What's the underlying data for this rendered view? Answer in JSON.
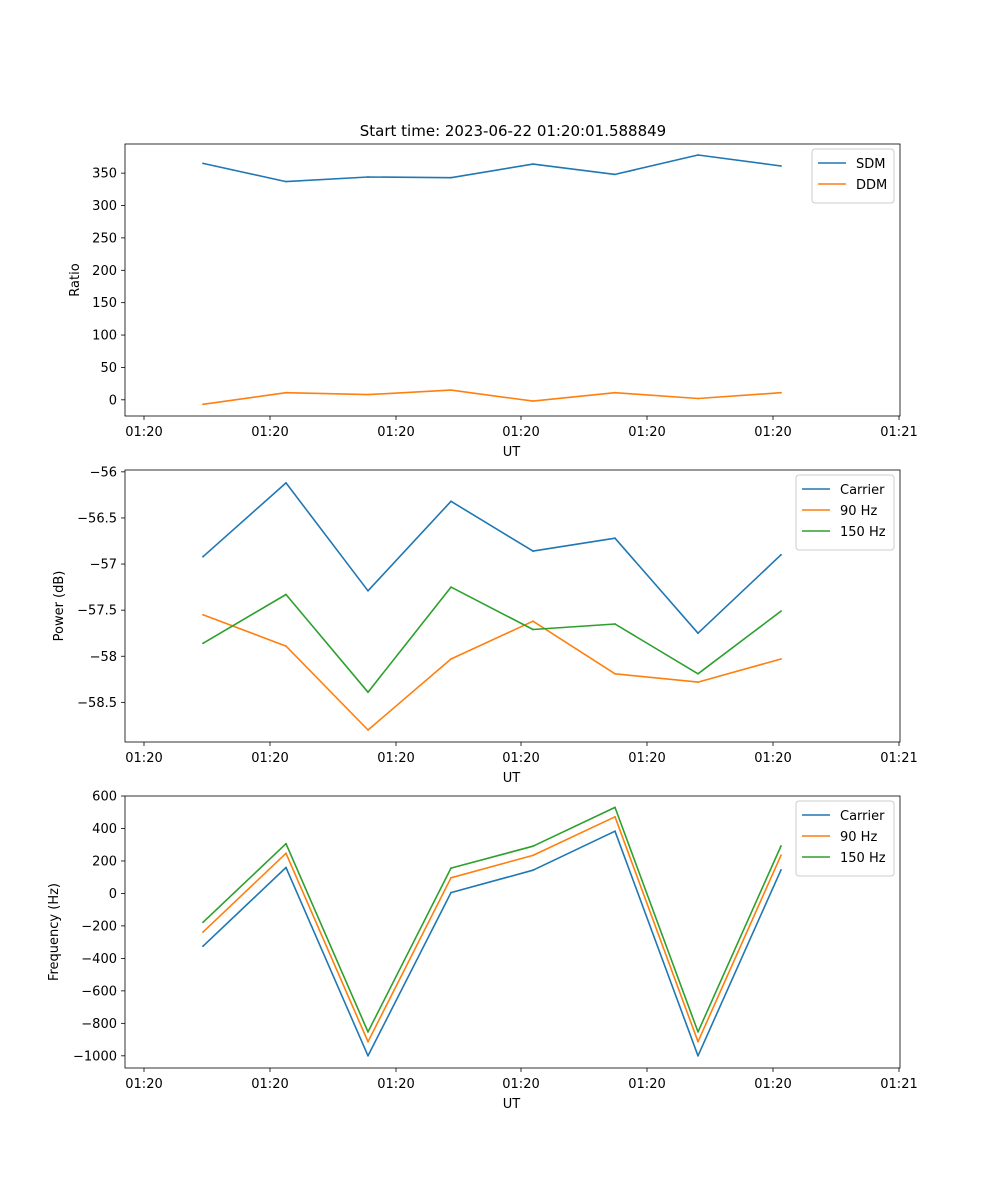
{
  "title": "Start time: 2023-06-22 01:20:01.588849",
  "colors": {
    "blue": "#1f77b4",
    "orange": "#ff7f0e",
    "green": "#2ca02c"
  },
  "chart_data": [
    {
      "type": "line",
      "xlabel": "UT",
      "ylabel": "Ratio",
      "xticks": [
        "01:20",
        "01:20",
        "01:20",
        "01:20",
        "01:20",
        "01:20",
        "01:21"
      ],
      "yticks": [
        0,
        50,
        100,
        150,
        200,
        250,
        300,
        350
      ],
      "ylim": [
        -25,
        395
      ],
      "legend_position": "top-right",
      "series": [
        {
          "name": "SDM",
          "color": "#1f77b4",
          "values": [
            365,
            337,
            344,
            343,
            364,
            348,
            378,
            361
          ]
        },
        {
          "name": "DDM",
          "color": "#ff7f0e",
          "values": [
            -7,
            11,
            8,
            15,
            -2,
            11,
            2,
            11
          ]
        }
      ]
    },
    {
      "type": "line",
      "xlabel": "UT",
      "ylabel": "Power (dB)",
      "xticks": [
        "01:20",
        "01:20",
        "01:20",
        "01:20",
        "01:20",
        "01:20",
        "01:21"
      ],
      "yticks": [
        -58.5,
        -58.0,
        -57.5,
        -57.0,
        -56.5,
        -56.0
      ],
      "ylim": [
        -58.93,
        -55.98
      ],
      "legend_position": "top-right",
      "series": [
        {
          "name": "Carrier",
          "color": "#1f77b4",
          "values": [
            -56.92,
            -56.12,
            -57.29,
            -56.32,
            -56.86,
            -56.72,
            -57.75,
            -56.9
          ]
        },
        {
          "name": "90 Hz",
          "color": "#ff7f0e",
          "values": [
            -57.55,
            -57.89,
            -58.8,
            -58.03,
            -57.62,
            -58.19,
            -58.28,
            -58.03
          ]
        },
        {
          "name": "150 Hz",
          "color": "#2ca02c",
          "values": [
            -57.86,
            -57.33,
            -58.39,
            -57.25,
            -57.71,
            -57.65,
            -58.19,
            -57.51
          ]
        }
      ]
    },
    {
      "type": "line",
      "xlabel": "UT",
      "ylabel": "Frequency (Hz)",
      "xticks": [
        "01:20",
        "01:20",
        "01:20",
        "01:20",
        "01:20",
        "01:20",
        "01:21"
      ],
      "yticks": [
        -1000,
        -800,
        -600,
        -400,
        -200,
        0,
        200,
        400,
        600
      ],
      "ylim": [
        -1075,
        600
      ],
      "legend_position": "top-right",
      "series": [
        {
          "name": "Carrier",
          "color": "#1f77b4",
          "values": [
            -325,
            160,
            -1000,
            5,
            143,
            383,
            -1000,
            145
          ]
        },
        {
          "name": "90 Hz",
          "color": "#ff7f0e",
          "values": [
            -238,
            247,
            -913,
            96,
            234,
            472,
            -913,
            235
          ]
        },
        {
          "name": "150 Hz",
          "color": "#2ca02c",
          "values": [
            -178,
            306,
            -853,
            156,
            291,
            530,
            -853,
            292
          ]
        }
      ]
    }
  ]
}
